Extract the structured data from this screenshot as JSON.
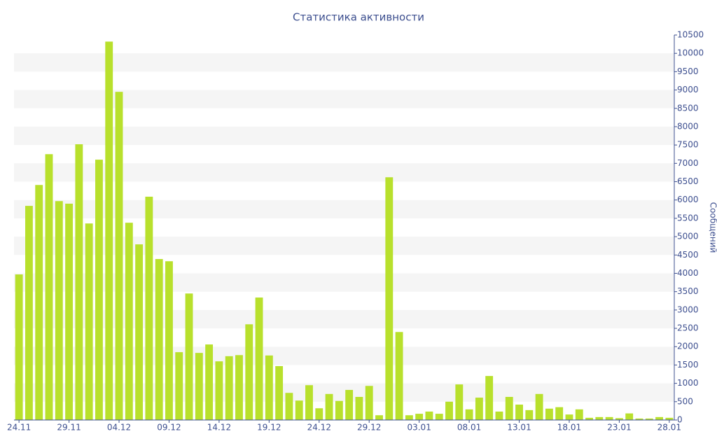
{
  "chart_data": {
    "type": "bar",
    "title": "Статистика активности",
    "y_label": "Сообщений",
    "categories": [
      "24.11",
      null,
      null,
      null,
      null,
      "29.11",
      null,
      null,
      null,
      null,
      "04.12",
      null,
      null,
      null,
      null,
      "09.12",
      null,
      null,
      null,
      null,
      "14.12",
      null,
      null,
      null,
      null,
      "19.12",
      null,
      null,
      null,
      null,
      "24.12",
      null,
      null,
      null,
      null,
      "29.12",
      null,
      null,
      null,
      null,
      "03.01",
      null,
      null,
      null,
      null,
      "08.01",
      null,
      null,
      null,
      null,
      "13.01",
      null,
      null,
      null,
      null,
      "18.01",
      null,
      null,
      null,
      null,
      "23.01",
      null,
      null,
      null,
      null,
      "28.01"
    ],
    "values": [
      3970,
      5840,
      6410,
      7250,
      5970,
      5900,
      7520,
      5360,
      7100,
      10320,
      8950,
      5380,
      4790,
      6090,
      4390,
      4330,
      1850,
      3450,
      1830,
      2060,
      1600,
      1740,
      1770,
      2610,
      3340,
      1760,
      1470,
      740,
      530,
      950,
      320,
      710,
      520,
      820,
      630,
      930,
      130,
      6620,
      2400,
      130,
      170,
      230,
      170,
      500,
      970,
      290,
      610,
      1200,
      230,
      630,
      420,
      270,
      710,
      310,
      350,
      150,
      290,
      60,
      80,
      80,
      50,
      180,
      40,
      40,
      80,
      60
    ],
    "color": "#b8e02c",
    "ylim": [
      0,
      10500
    ],
    "yticks": [
      0,
      500,
      1000,
      1500,
      2000,
      2500,
      3000,
      3500,
      4000,
      4500,
      5000,
      5500,
      6000,
      6500,
      7000,
      7500,
      8000,
      8500,
      9000,
      9500,
      10000,
      10500
    ],
    "grid": true,
    "stripe_color": "#f5f5f5",
    "y_axis_side": "right"
  }
}
